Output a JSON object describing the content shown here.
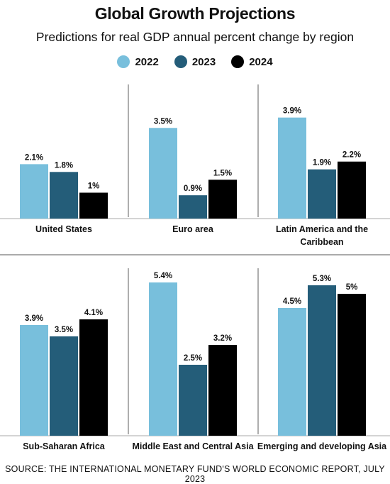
{
  "title": "Global Growth Projections",
  "subtitle": "Predictions for real GDP annual percent change by region",
  "source": "SOURCE: THE INTERNATIONAL MONETARY FUND'S WORLD ECONOMIC REPORT, JULY 2023",
  "chart_data": {
    "type": "bar",
    "title": "Global Growth Projections",
    "subtitle": "Predictions for real GDP annual percent change by region",
    "legend_position": "top-center",
    "grid": false,
    "series": [
      {
        "name": "2022",
        "color": "#78bfdc"
      },
      {
        "name": "2023",
        "color": "#245d79"
      },
      {
        "name": "2024",
        "color": "#000000"
      }
    ],
    "panels": [
      {
        "category": "United States",
        "values": [
          2.1,
          1.8,
          1.0
        ],
        "labels": [
          "2.1%",
          "1.8%",
          "1%"
        ]
      },
      {
        "category": "Euro area",
        "values": [
          3.5,
          0.9,
          1.5
        ],
        "labels": [
          "3.5%",
          "0.9%",
          "1.5%"
        ]
      },
      {
        "category": "Latin America and the Caribbean",
        "category_lines": [
          "Latin America and the",
          "Caribbean"
        ],
        "values": [
          3.9,
          1.9,
          2.2
        ],
        "labels": [
          "3.9%",
          "1.9%",
          "2.2%"
        ]
      },
      {
        "category": "Sub-Saharan Africa",
        "values": [
          3.9,
          3.5,
          4.1
        ],
        "labels": [
          "3.9%",
          "3.5%",
          "4.1%"
        ]
      },
      {
        "category": "Middle East and Central Asia",
        "values": [
          5.4,
          2.5,
          3.2
        ],
        "labels": [
          "5.4%",
          "2.5%",
          "3.2%"
        ]
      },
      {
        "category": "Emerging and developing Asia",
        "values": [
          4.5,
          5.3,
          5.0
        ],
        "labels": [
          "4.5%",
          "5.3%",
          "5%"
        ]
      }
    ]
  }
}
